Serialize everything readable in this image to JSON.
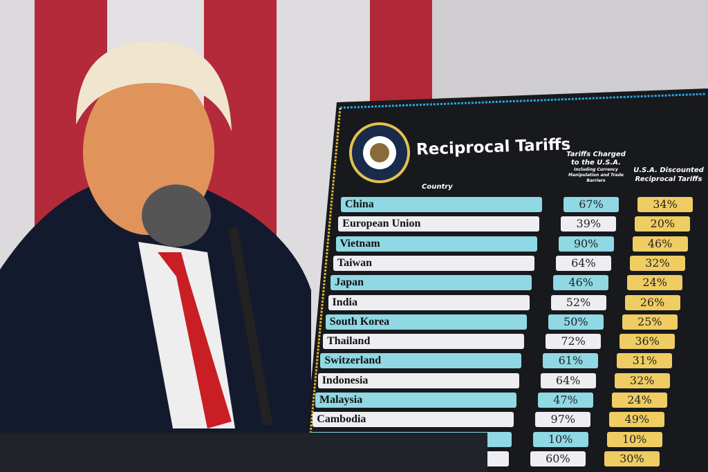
{
  "board": {
    "title": "Reciprocal Tariffs",
    "col_country": "Country",
    "col_charged": "Tariffs Charged to the U.S.A.",
    "col_charged_note": "Including Currency Manipulation and Trade Barriers",
    "col_discounted": "U.S.A. Discounted Reciprocal Tariffs",
    "seal_text": "SEAL OF THE PRESIDENT OF THE UNITED STATES",
    "rows": [
      {
        "country": "China",
        "charged": "67%",
        "discounted": "34%"
      },
      {
        "country": "European Union",
        "charged": "39%",
        "discounted": "20%"
      },
      {
        "country": "Vietnam",
        "charged": "90%",
        "discounted": "46%"
      },
      {
        "country": "Taiwan",
        "charged": "64%",
        "discounted": "32%"
      },
      {
        "country": "Japan",
        "charged": "46%",
        "discounted": "24%"
      },
      {
        "country": "India",
        "charged": "52%",
        "discounted": "26%"
      },
      {
        "country": "South Korea",
        "charged": "50%",
        "discounted": "25%"
      },
      {
        "country": "Thailand",
        "charged": "72%",
        "discounted": "36%"
      },
      {
        "country": "Switzerland",
        "charged": "61%",
        "discounted": "31%"
      },
      {
        "country": "Indonesia",
        "charged": "64%",
        "discounted": "32%"
      },
      {
        "country": "Malaysia",
        "charged": "47%",
        "discounted": "24%"
      },
      {
        "country": "Cambodia",
        "charged": "97%",
        "discounted": "49%"
      },
      {
        "country": "",
        "charged": "10%",
        "discounted": "10%"
      },
      {
        "country": "",
        "charged": "60%",
        "discounted": "30%"
      }
    ]
  },
  "colors": {
    "cyan": "#8fd8e4",
    "white": "#eeeef2",
    "gold": "#efcd62",
    "board": "#17191d",
    "flag_red": "#b8283a"
  }
}
